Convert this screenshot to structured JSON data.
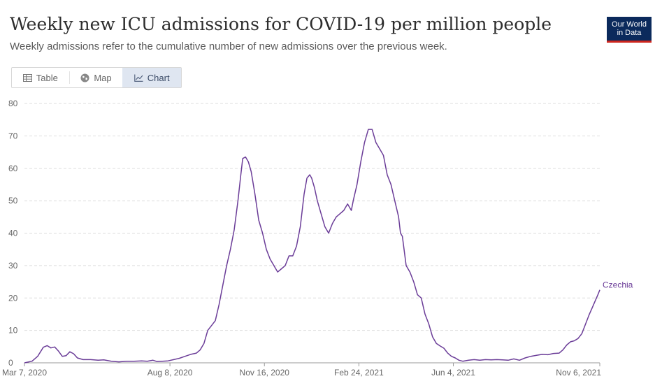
{
  "header": {
    "title": "Weekly new ICU admissions for COVID-19 per million people",
    "subtitle": "Weekly admissions refer to the cumulative number of new admissions over the previous week.",
    "logo_line1": "Our World",
    "logo_line2": "in Data"
  },
  "tabs": [
    {
      "label": "Table",
      "icon": "table-icon",
      "active": false
    },
    {
      "label": "Map",
      "icon": "globe-icon",
      "active": false
    },
    {
      "label": "Chart",
      "icon": "line-chart-icon",
      "active": true
    }
  ],
  "colors": {
    "series": "#6b3d98",
    "grid": "#dddddd",
    "logo_bg": "#0b2a5c",
    "logo_accent": "#ce261e"
  },
  "chart_data": {
    "type": "line",
    "title": "Weekly new ICU admissions for COVID-19 per million people",
    "xlabel": "",
    "ylabel": "",
    "ylim": [
      0,
      80
    ],
    "yticks": [
      0,
      10,
      20,
      30,
      40,
      50,
      60,
      70,
      80
    ],
    "x_domain": [
      0,
      609
    ],
    "xticks": [
      {
        "day": 0,
        "label": "Mar 7, 2020"
      },
      {
        "day": 154,
        "label": "Aug 8, 2020"
      },
      {
        "day": 254,
        "label": "Nov 16, 2020"
      },
      {
        "day": 354,
        "label": "Feb 24, 2021"
      },
      {
        "day": 454,
        "label": "Jun 4, 2021"
      },
      {
        "day": 609,
        "label": "Nov 6, 2021"
      }
    ],
    "grid": true,
    "series": [
      {
        "name": "Czechia",
        "x_unit": "days since Mar 7, 2020",
        "points": [
          [
            0,
            0
          ],
          [
            8,
            0.5
          ],
          [
            14,
            2
          ],
          [
            20,
            4.8
          ],
          [
            24,
            5.3
          ],
          [
            28,
            4.6
          ],
          [
            32,
            4.9
          ],
          [
            36,
            3.6
          ],
          [
            40,
            2
          ],
          [
            44,
            2.2
          ],
          [
            48,
            3.4
          ],
          [
            52,
            2.8
          ],
          [
            56,
            1.5
          ],
          [
            62,
            1
          ],
          [
            70,
            1
          ],
          [
            78,
            0.8
          ],
          [
            84,
            0.9
          ],
          [
            92,
            0.5
          ],
          [
            100,
            0.3
          ],
          [
            108,
            0.5
          ],
          [
            116,
            0.5
          ],
          [
            124,
            0.6
          ],
          [
            130,
            0.5
          ],
          [
            136,
            0.8
          ],
          [
            140,
            0.4
          ],
          [
            146,
            0.5
          ],
          [
            152,
            0.6
          ],
          [
            158,
            1
          ],
          [
            164,
            1.4
          ],
          [
            170,
            2
          ],
          [
            176,
            2.6
          ],
          [
            182,
            3
          ],
          [
            186,
            4
          ],
          [
            190,
            6
          ],
          [
            194,
            10
          ],
          [
            198,
            11.5
          ],
          [
            202,
            13
          ],
          [
            206,
            18
          ],
          [
            210,
            24
          ],
          [
            214,
            30
          ],
          [
            218,
            35
          ],
          [
            222,
            41
          ],
          [
            226,
            50
          ],
          [
            229,
            58
          ],
          [
            231,
            63
          ],
          [
            234,
            63.5
          ],
          [
            237,
            62
          ],
          [
            240,
            59
          ],
          [
            244,
            52
          ],
          [
            248,
            44
          ],
          [
            252,
            40
          ],
          [
            256,
            35
          ],
          [
            260,
            32
          ],
          [
            264,
            30
          ],
          [
            268,
            28
          ],
          [
            272,
            29
          ],
          [
            276,
            30
          ],
          [
            280,
            33
          ],
          [
            284,
            33
          ],
          [
            288,
            36
          ],
          [
            292,
            42
          ],
          [
            296,
            52
          ],
          [
            299,
            57
          ],
          [
            302,
            58
          ],
          [
            304,
            57
          ],
          [
            307,
            54
          ],
          [
            310,
            50
          ],
          [
            314,
            46
          ],
          [
            318,
            42
          ],
          [
            322,
            40
          ],
          [
            326,
            43
          ],
          [
            330,
            45
          ],
          [
            334,
            46
          ],
          [
            338,
            47
          ],
          [
            342,
            49
          ],
          [
            346,
            47
          ],
          [
            348,
            50
          ],
          [
            352,
            55
          ],
          [
            356,
            62
          ],
          [
            360,
            68
          ],
          [
            364,
            72
          ],
          [
            368,
            72
          ],
          [
            372,
            68
          ],
          [
            376,
            66
          ],
          [
            380,
            64
          ],
          [
            384,
            58
          ],
          [
            388,
            55
          ],
          [
            392,
            50
          ],
          [
            396,
            45
          ],
          [
            398,
            40
          ],
          [
            400,
            39
          ],
          [
            404,
            30
          ],
          [
            408,
            28
          ],
          [
            412,
            25
          ],
          [
            416,
            21
          ],
          [
            420,
            20
          ],
          [
            424,
            15
          ],
          [
            428,
            12
          ],
          [
            432,
            8
          ],
          [
            436,
            6
          ],
          [
            440,
            5.2
          ],
          [
            444,
            4.5
          ],
          [
            448,
            3
          ],
          [
            452,
            2
          ],
          [
            456,
            1.5
          ],
          [
            460,
            0.8
          ],
          [
            464,
            0.5
          ],
          [
            470,
            0.8
          ],
          [
            476,
            1
          ],
          [
            482,
            0.8
          ],
          [
            488,
            1
          ],
          [
            494,
            0.9
          ],
          [
            500,
            1
          ],
          [
            506,
            0.9
          ],
          [
            512,
            0.8
          ],
          [
            518,
            1.2
          ],
          [
            524,
            0.8
          ],
          [
            530,
            1.5
          ],
          [
            536,
            2
          ],
          [
            542,
            2.3
          ],
          [
            548,
            2.6
          ],
          [
            554,
            2.5
          ],
          [
            560,
            2.9
          ],
          [
            566,
            3
          ],
          [
            570,
            4
          ],
          [
            574,
            5.5
          ],
          [
            578,
            6.5
          ],
          [
            582,
            6.8
          ],
          [
            586,
            7.5
          ],
          [
            590,
            9
          ],
          [
            594,
            12
          ],
          [
            598,
            15
          ],
          [
            601,
            17
          ],
          [
            604,
            19
          ],
          [
            607,
            21
          ],
          [
            609,
            22.5
          ]
        ]
      }
    ]
  }
}
